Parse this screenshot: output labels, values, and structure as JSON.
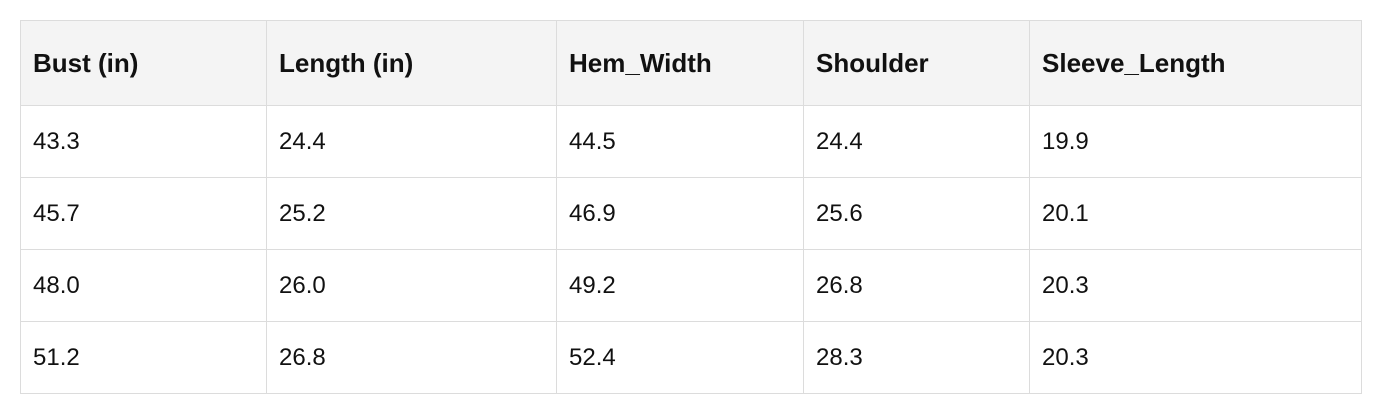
{
  "table": {
    "header": [
      "Bust (in)",
      "Length (in)",
      "Hem_Width",
      "Shoulder",
      "Sleeve_Length"
    ],
    "rows": [
      [
        "43.3",
        "24.4",
        "44.5",
        "24.4",
        "19.9"
      ],
      [
        "45.7",
        "25.2",
        "46.9",
        "25.6",
        "20.1"
      ],
      [
        "48.0",
        "26.0",
        "49.2",
        "26.8",
        "20.3"
      ],
      [
        "51.2",
        "26.8",
        "52.4",
        "28.3",
        "20.3"
      ]
    ]
  }
}
